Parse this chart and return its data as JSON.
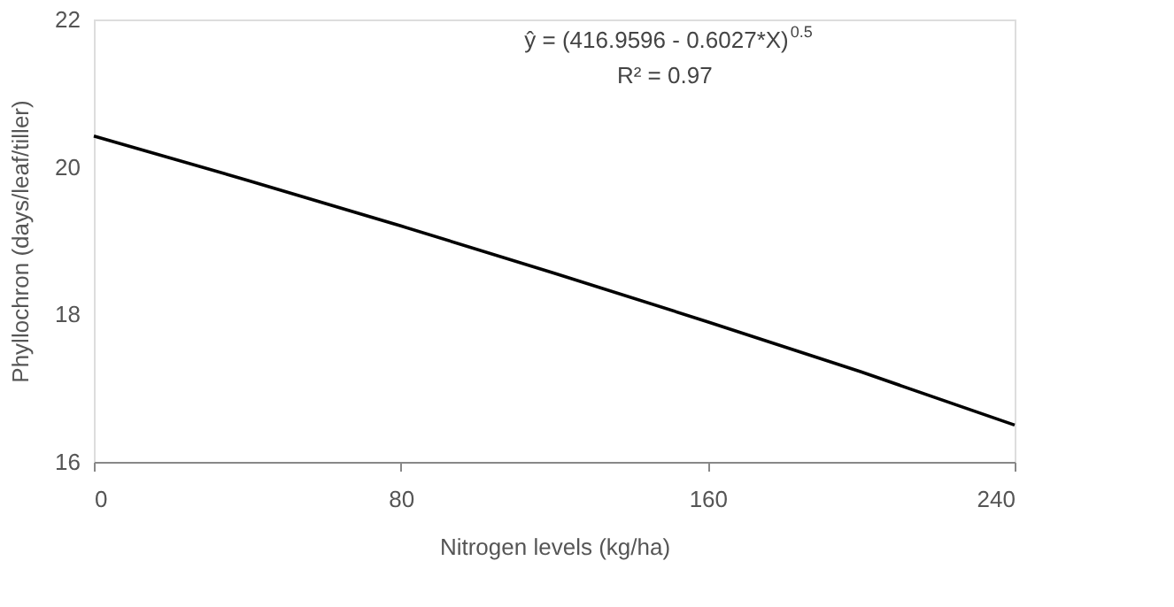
{
  "chart_data": {
    "type": "line",
    "xlabel": "Nitrogen levels (kg/ha)",
    "ylabel": "Phyllochron (days/leaf/tiller)",
    "x": [
      0,
      40,
      80,
      120,
      160,
      200,
      240
    ],
    "series": [
      {
        "color": "#000000",
        "values": [
          20.42,
          19.82,
          19.2,
          18.56,
          17.9,
          17.22,
          16.5
        ]
      }
    ],
    "xlim": [
      0,
      240
    ],
    "xticks": [
      0,
      80,
      160,
      240
    ],
    "ylim": [
      16,
      22
    ],
    "yticks": [
      16,
      18,
      20,
      22
    ],
    "grid": false,
    "legend": false,
    "marker": "none",
    "line_style": "solid",
    "annotations": [
      "ŷ = (416.9596 - 0.6027*X)$^{0.5}$",
      "R² = 0.97"
    ]
  }
}
